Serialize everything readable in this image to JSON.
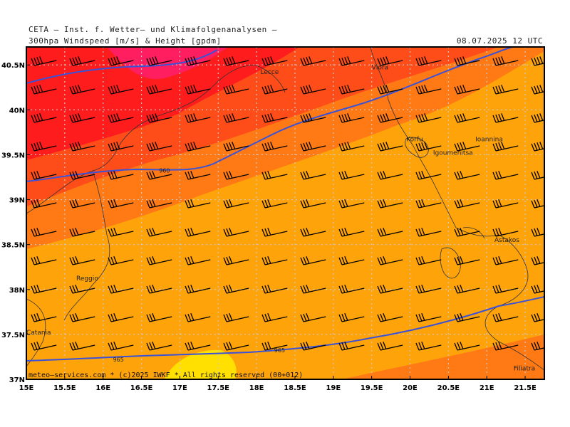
{
  "header": {
    "title": "CETA — Inst. f. Wetter— und Klimafolgenanalysen —",
    "product": "300hpa Windspeed [m/s] & Height [gpdm]",
    "valid": "08.07.2025 12 UTC"
  },
  "map": {
    "lon_range": [
      15.0,
      21.75
    ],
    "lat_range": [
      37.0,
      40.7
    ],
    "lon_ticks": [
      "15E",
      "15.5E",
      "16E",
      "16.5E",
      "17E",
      "17.5E",
      "18E",
      "18.5E",
      "19E",
      "19.5E",
      "20E",
      "20.5E",
      "21E",
      "21.5E"
    ],
    "lat_ticks": [
      "37N",
      "37.5N",
      "38N",
      "38.5N",
      "39N",
      "39.5N",
      "40N",
      "40.5N"
    ],
    "colors": {
      "band_1": "#ff1c1c",
      "band_2": "#ff4d1a",
      "band_3": "#ff7a14",
      "band_4": "#ffa30a",
      "band_5": "#ffe000",
      "core": "#ff1e60",
      "contour": "#3a52d8",
      "grid": "#c8c8c8",
      "coast": "#333333"
    },
    "contours": [
      {
        "label": "960",
        "label_pos": [
          16.8,
          39.3
        ]
      },
      {
        "label": "965",
        "label_pos": [
          16.2,
          37.2
        ]
      },
      {
        "label": "965",
        "label_pos": [
          18.3,
          37.3
        ]
      }
    ],
    "places": [
      {
        "name": "Lecce",
        "lon": 18.05,
        "lat": 40.4
      },
      {
        "name": "Vlora",
        "lon": 19.5,
        "lat": 40.45
      },
      {
        "name": "Korfu",
        "lon": 19.95,
        "lat": 39.65
      },
      {
        "name": "Igoumenitsa",
        "lon": 20.3,
        "lat": 39.5
      },
      {
        "name": "Ioannina",
        "lon": 20.85,
        "lat": 39.65
      },
      {
        "name": "Astakos",
        "lon": 21.1,
        "lat": 38.53
      },
      {
        "name": "Reggio",
        "lon": 15.65,
        "lat": 38.1
      },
      {
        "name": "Catania",
        "lon": 15.0,
        "lat": 37.5
      },
      {
        "name": "Filiatra",
        "lon": 21.35,
        "lat": 37.1
      }
    ],
    "footer": "meteo—services.com * (c)2025 IWKF * All rights reserved (00+012)"
  }
}
